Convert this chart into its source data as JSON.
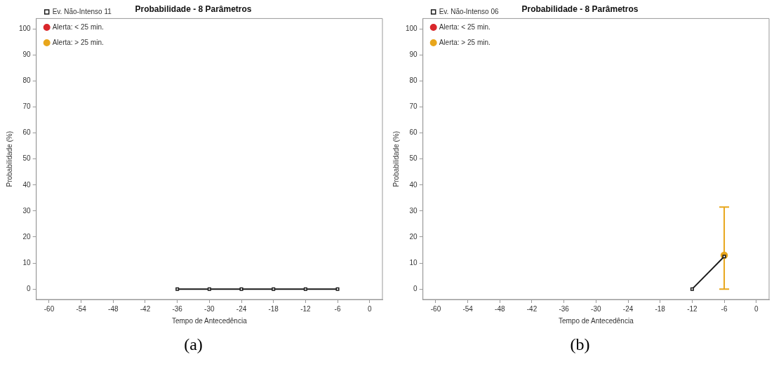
{
  "chart_data": [
    {
      "type": "line",
      "title": "Probabilidade - 8 Parâmetros",
      "xlabel": "Tempo de Antecedência",
      "ylabel": "Probabilidade (%)",
      "x": [
        -36,
        -30,
        -24,
        -18,
        -12,
        -6
      ],
      "xlim": [
        -62.4,
        2.4
      ],
      "ylim": [
        -4,
        104
      ],
      "xticks": [
        -60,
        -54,
        -48,
        -42,
        -36,
        -30,
        -24,
        -18,
        -12,
        -6,
        0
      ],
      "yticks": [
        0,
        10,
        20,
        30,
        40,
        50,
        60,
        70,
        80,
        90,
        100
      ],
      "grid": false,
      "legend": "top left",
      "marker": "square",
      "annotations": [
        "(a)"
      ],
      "series": [
        {
          "name": "Ev. Não-Intenso 11",
          "color": "#1a1a1a",
          "values": [
            0,
            0,
            0,
            0,
            0,
            0
          ]
        },
        {
          "name": "Alerta: < 25 min.",
          "color": "#d9262b",
          "marker": "circle",
          "values": [
            null,
            null,
            null,
            null,
            null,
            null
          ]
        },
        {
          "name": "Alerta: > 25 min.",
          "color": "#e8a61c",
          "marker": "circle",
          "values": [
            null,
            null,
            null,
            null,
            null,
            null
          ]
        }
      ]
    },
    {
      "type": "line",
      "title": "Probabilidade - 8 Parâmetros",
      "xlabel": "Tempo de Antecedência",
      "ylabel": "Probabilidade (%)",
      "x": [
        -12,
        -6
      ],
      "xlim": [
        -62.4,
        2.4
      ],
      "ylim": [
        -4,
        104
      ],
      "xticks": [
        -60,
        -54,
        -48,
        -42,
        -36,
        -30,
        -24,
        -18,
        -12,
        -6,
        0
      ],
      "yticks": [
        0,
        10,
        20,
        30,
        40,
        50,
        60,
        70,
        80,
        90,
        100
      ],
      "grid": false,
      "legend": "top left",
      "marker": "square",
      "annotations": [
        "(b)"
      ],
      "series": [
        {
          "name": "Ev. Não-Intenso 06",
          "color": "#1a1a1a",
          "values": [
            0,
            12.5
          ]
        },
        {
          "name": "Alerta: < 25 min.",
          "color": "#d9262b",
          "marker": "circle",
          "values": [
            null,
            null
          ]
        },
        {
          "name": "Alerta: > 25 min.",
          "color": "#e8a61c",
          "marker": "circle",
          "values": [
            null,
            13
          ],
          "errors": [
            null,
            [
              0,
              31.5
            ]
          ]
        }
      ]
    }
  ]
}
